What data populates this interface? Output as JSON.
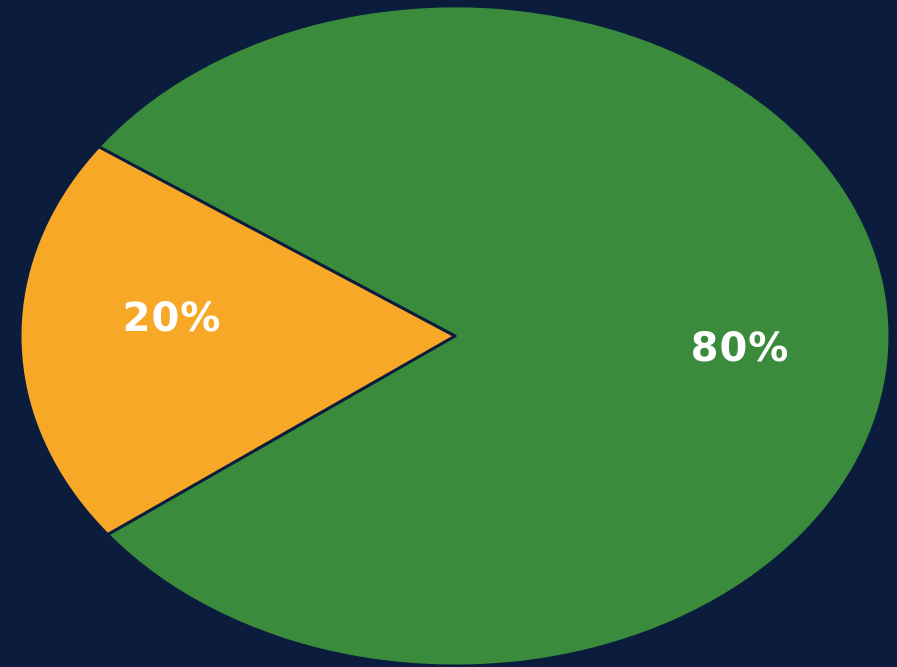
{
  "chart_data": {
    "type": "pie",
    "slices": [
      {
        "value": 80,
        "label": "80%",
        "color": "#3a8c3c"
      },
      {
        "value": 20,
        "label": "20%",
        "color": "#f7a827"
      }
    ],
    "background_color": "#0b1c3d",
    "legend": "none"
  }
}
